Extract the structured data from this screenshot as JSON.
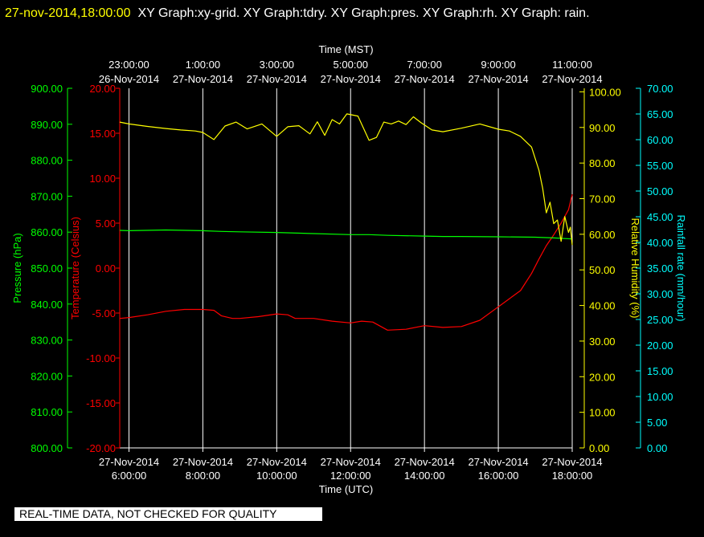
{
  "header": {
    "timestamp": "27-nov-2014,18:00:00",
    "titles": "XY Graph:xy-grid.  XY Graph:tdry.  XY Graph:pres.  XY Graph:rh.  XY Graph: rain."
  },
  "notice": "REAL-TIME DATA, NOT CHECKED FOR QUALITY",
  "colors": {
    "temperature": "#ff0000",
    "pressure": "#00ff00",
    "humidity": "#ffff00",
    "rainfall": "#00ffff",
    "grid": "#ffffff",
    "axis_labels": "#ffffff"
  },
  "chart_data": {
    "type": "line",
    "grid": true,
    "x_axis_bottom": {
      "title": "Time (UTC)",
      "range_hours": [
        5.75,
        18.0
      ],
      "ticks": [
        {
          "date": "27-Nov-2014",
          "time": "6:00:00"
        },
        {
          "date": "27-Nov-2014",
          "time": "8:00:00"
        },
        {
          "date": "27-Nov-2014",
          "time": "10:00:00"
        },
        {
          "date": "27-Nov-2014",
          "time": "12:00:00"
        },
        {
          "date": "27-Nov-2014",
          "time": "14:00:00"
        },
        {
          "date": "27-Nov-2014",
          "time": "16:00:00"
        },
        {
          "date": "27-Nov-2014",
          "time": "18:00:00"
        }
      ]
    },
    "x_axis_top": {
      "title": "Time (MST)",
      "ticks": [
        {
          "time": "23:00:00",
          "date": "26-Nov-2014"
        },
        {
          "time": "1:00:00",
          "date": "27-Nov-2014"
        },
        {
          "time": "3:00:00",
          "date": "27-Nov-2014"
        },
        {
          "time": "5:00:00",
          "date": "27-Nov-2014"
        },
        {
          "time": "7:00:00",
          "date": "27-Nov-2014"
        },
        {
          "time": "9:00:00",
          "date": "27-Nov-2014"
        },
        {
          "time": "11:00:00",
          "date": "27-Nov-2014"
        }
      ]
    },
    "y_axes": {
      "pressure": {
        "label": "Pressure (hPa)",
        "ylim": [
          800,
          900
        ],
        "ticks": [
          "800.00",
          "810.00",
          "820.00",
          "830.00",
          "840.00",
          "850.00",
          "860.00",
          "870.00",
          "880.00",
          "890.00",
          "900.00"
        ]
      },
      "temperature": {
        "label": "Temperature (Celsius)",
        "ylim": [
          -20,
          20
        ],
        "ticks": [
          "-20.00",
          "-15.00",
          "-10.00",
          "-5.00",
          "0.00",
          "5.00",
          "10.00",
          "15.00",
          "20.00"
        ]
      },
      "humidity": {
        "label": "Relative Humidity (%)",
        "ylim": [
          0,
          101
        ],
        "ticks": [
          "0.00",
          "10.00",
          "20.00",
          "30.00",
          "40.00",
          "50.00",
          "60.00",
          "70.00",
          "80.00",
          "90.00",
          "100.00"
        ]
      },
      "rainfall": {
        "label": "Rainfall rate (mm/hour)",
        "ylim": [
          0,
          70
        ],
        "ticks": [
          "0.00",
          "5.00",
          "10.00",
          "15.00",
          "20.00",
          "25.00",
          "30.00",
          "35.00",
          "40.00",
          "45.00",
          "50.00",
          "55.00",
          "60.00",
          "65.00",
          "70.00"
        ]
      }
    },
    "series": [
      {
        "key": "temperature",
        "x": [
          5.75,
          6.0,
          6.5,
          7.0,
          7.5,
          8.0,
          8.3,
          8.5,
          8.8,
          9.0,
          9.5,
          10.0,
          10.3,
          10.5,
          10.7,
          11.0,
          11.5,
          12.0,
          12.3,
          12.6,
          13.0,
          13.5,
          14.0,
          14.5,
          15.0,
          15.5,
          16.0,
          16.3,
          16.6,
          16.9,
          17.1,
          17.3,
          17.5,
          17.7,
          17.9,
          18.0
        ],
        "values": [
          -5.6,
          -5.5,
          -5.2,
          -4.8,
          -4.6,
          -4.6,
          -4.7,
          -5.3,
          -5.6,
          -5.6,
          -5.4,
          -5.1,
          -5.2,
          -5.6,
          -5.6,
          -5.6,
          -5.9,
          -6.1,
          -5.9,
          -6.0,
          -6.9,
          -6.8,
          -6.4,
          -6.6,
          -6.5,
          -5.8,
          -4.3,
          -3.4,
          -2.5,
          -0.6,
          1.0,
          2.5,
          3.7,
          5.0,
          6.5,
          8.2
        ]
      },
      {
        "key": "pressure",
        "x": [
          5.75,
          6.0,
          7.0,
          8.0,
          8.5,
          9.0,
          10.0,
          11.0,
          12.0,
          12.5,
          13.0,
          14.0,
          14.5,
          15.0,
          16.0,
          17.0,
          17.5,
          18.0
        ],
        "values": [
          860.5,
          860.4,
          860.6,
          860.4,
          860.2,
          860.1,
          859.9,
          859.6,
          859.3,
          859.3,
          859.1,
          858.9,
          858.8,
          858.8,
          858.7,
          858.6,
          858.4,
          858.1
        ]
      },
      {
        "key": "humidity",
        "x": [
          5.75,
          6.0,
          6.5,
          7.0,
          7.4,
          7.8,
          8.0,
          8.3,
          8.6,
          8.9,
          9.2,
          9.6,
          10.0,
          10.3,
          10.6,
          10.9,
          11.1,
          11.3,
          11.5,
          11.7,
          11.9,
          12.2,
          12.5,
          12.7,
          12.9,
          13.1,
          13.3,
          13.5,
          13.7,
          13.9,
          14.2,
          14.5,
          15.0,
          15.5,
          16.0,
          16.3,
          16.6,
          16.9,
          17.1,
          17.2,
          17.3,
          17.4,
          17.5,
          17.6,
          17.7,
          17.8,
          17.9,
          17.95,
          18.0
        ],
        "values": [
          91.5,
          91.0,
          90.3,
          89.7,
          89.3,
          89.0,
          88.6,
          86.6,
          90.4,
          91.5,
          89.6,
          91.0,
          87.5,
          90.2,
          90.5,
          88.2,
          91.6,
          87.8,
          92.2,
          91.0,
          93.8,
          93.2,
          86.4,
          87.2,
          91.5,
          91.0,
          91.8,
          90.8,
          93.0,
          91.4,
          89.3,
          88.8,
          89.8,
          91.0,
          89.5,
          89.0,
          87.5,
          84.5,
          78.0,
          73.0,
          66.0,
          69.0,
          63.0,
          64.0,
          58.0,
          65.0,
          60.5,
          62.0,
          57.0
        ]
      },
      {
        "key": "rainfall",
        "x": [
          5.75,
          18.0
        ],
        "values": [
          0.0,
          0.0
        ]
      }
    ]
  }
}
